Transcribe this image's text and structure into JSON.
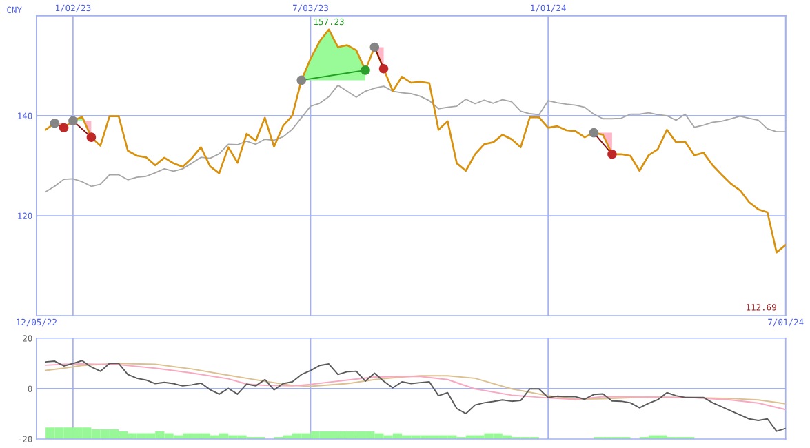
{
  "chart_data": [
    {
      "type": "line",
      "ylabel": "CNY",
      "x": [
        "2022-12-12",
        "2022-12-19",
        "2022-12-26",
        "2023-01-02",
        "2023-01-09",
        "2023-01-16",
        "2023-01-23",
        "2023-01-30",
        "2023-02-06",
        "2023-02-13",
        "2023-02-20",
        "2023-02-27",
        "2023-03-06",
        "2023-03-13",
        "2023-03-20",
        "2023-03-27",
        "2023-04-03",
        "2023-04-10",
        "2023-04-17",
        "2023-04-24",
        "2023-05-01",
        "2023-05-08",
        "2023-05-15",
        "2023-05-22",
        "2023-05-29",
        "2023-06-05",
        "2023-06-12",
        "2023-06-19",
        "2023-06-26",
        "2023-07-03",
        "2023-07-10",
        "2023-07-17",
        "2023-07-24",
        "2023-07-31",
        "2023-08-07",
        "2023-08-14",
        "2023-08-21",
        "2023-08-28",
        "2023-09-04",
        "2023-09-11",
        "2023-09-18",
        "2023-09-25",
        "2023-10-02",
        "2023-10-09",
        "2023-10-16",
        "2023-10-23",
        "2023-10-30",
        "2023-11-06",
        "2023-11-13",
        "2023-11-20",
        "2023-11-27",
        "2023-12-04",
        "2023-12-11",
        "2023-12-18",
        "2023-12-25",
        "2024-01-01",
        "2024-01-08",
        "2024-01-15",
        "2024-01-22",
        "2024-01-29",
        "2024-02-05",
        "2024-02-12",
        "2024-02-19",
        "2024-02-26",
        "2024-03-04",
        "2024-03-11",
        "2024-03-18",
        "2024-03-25",
        "2024-04-01",
        "2024-04-08",
        "2024-04-15",
        "2024-04-22",
        "2024-04-29",
        "2024-05-06",
        "2024-05-13",
        "2024-05-20",
        "2024-05-27",
        "2024-06-03",
        "2024-06-10",
        "2024-06-17",
        "2024-06-24",
        "2024-07-01"
      ],
      "xlim": [
        "2022-12-05",
        "2024-07-01"
      ],
      "xticks": [
        {
          "value": "2022-12-05",
          "label": "12/05/22"
        },
        {
          "value": "2024-07-01",
          "label": "7/01/24"
        }
      ],
      "x2lim": [
        "2022-12-05",
        "2024-07-01"
      ],
      "x2ticks": [
        {
          "value": "2023-01-02",
          "label": "1/02/23"
        },
        {
          "value": "2023-07-03",
          "label": "7/03/23"
        },
        {
          "value": "2024-01-01",
          "label": "1/01/24"
        }
      ],
      "ylim": [
        100,
        160
      ],
      "yticks": [
        120,
        140
      ],
      "grid": true,
      "series": [
        {
          "type": "line",
          "color": "#a6a6a6",
          "values": [
            124.8,
            125.9,
            127.3,
            127.4,
            126.8,
            125.9,
            126.3,
            128.2,
            128.2,
            127.2,
            127.7,
            127.9,
            128.6,
            129.4,
            128.9,
            129.4,
            130.5,
            131.7,
            131.5,
            132.4,
            134.3,
            134.2,
            134.9,
            134.3,
            135.3,
            135.1,
            135.8,
            137.3,
            139.6,
            141.9,
            142.5,
            143.8,
            146.1,
            144.9,
            143.7,
            144.9,
            145.5,
            145.9,
            144.9,
            144.6,
            144.4,
            143.9,
            143.0,
            141.4,
            141.7,
            141.9,
            143.3,
            142.4,
            143.1,
            142.5,
            143.2,
            142.8,
            140.9,
            140.4,
            140.2,
            143.0,
            142.6,
            142.3,
            142.1,
            141.7,
            140.3,
            139.4,
            139.4,
            139.5,
            140.3,
            140.3,
            140.6,
            140.2,
            140.0,
            139.1,
            140.3,
            137.7,
            138.1,
            138.7,
            138.9,
            139.4,
            139.9,
            139.5,
            139.1,
            137.4,
            136.8,
            136.8
          ]
        },
        {
          "color": "#d9900b",
          "values": [
            137.2,
            138.5,
            137.6,
            139.0,
            139.8,
            135.7,
            134.0,
            139.9,
            139.9,
            133.0,
            132.0,
            131.7,
            130.1,
            131.6,
            130.5,
            129.8,
            131.5,
            133.7,
            129.9,
            128.5,
            133.7,
            130.6,
            136.4,
            135.0,
            139.6,
            133.8,
            138.0,
            140.0,
            147.1,
            151.4,
            154.9,
            157.23,
            153.7,
            154.1,
            153.1,
            149.1,
            153.7,
            149.4,
            144.9,
            147.8,
            146.6,
            146.8,
            146.5,
            137.2,
            138.9,
            130.5,
            129.0,
            132.3,
            134.3,
            134.7,
            136.2,
            135.3,
            133.7,
            139.7,
            139.7,
            137.6,
            137.9,
            137.1,
            136.9,
            135.7,
            136.6,
            136.2,
            132.3,
            132.3,
            132.0,
            129.0,
            132.1,
            133.3,
            137.2,
            134.7,
            134.8,
            132.1,
            132.6,
            130.1,
            128.2,
            126.4,
            125.1,
            122.7,
            121.3,
            120.7,
            112.69,
            114.2
          ]
        },
        {
          "type": "line",
          "color": "#8b1010",
          "x": [
            "2022-12-19",
            "2022-12-26"
          ],
          "values": [
            138.5,
            137.6
          ]
        },
        {
          "type": "line",
          "color": "#8b1010",
          "x": [
            "2023-01-02",
            "2023-01-16"
          ],
          "values": [
            139.0,
            135.7
          ]
        },
        {
          "type": "line",
          "color": "#22a022",
          "x": [
            "2023-06-26",
            "2023-08-14"
          ],
          "values": [
            147.1,
            149.1
          ]
        },
        {
          "type": "line",
          "color": "#8b1010",
          "x": [
            "2023-08-21",
            "2023-08-28"
          ],
          "values": [
            153.7,
            149.4
          ]
        },
        {
          "type": "line",
          "color": "#8b1010",
          "x": [
            "2024-02-05",
            "2024-02-19"
          ],
          "values": [
            136.6,
            132.3
          ]
        },
        {
          "type": "scatter",
          "marker": "circle",
          "color": "#858585",
          "x": [
            "2022-12-19",
            "2023-01-02",
            "2023-06-26",
            "2023-08-21",
            "2024-02-05"
          ],
          "values": [
            138.5,
            139.0,
            147.1,
            153.7,
            136.6
          ]
        },
        {
          "type": "scatter",
          "marker": "circle",
          "color": "#c02828",
          "x": [
            "2022-12-26",
            "2023-01-16",
            "2023-08-28",
            "2024-02-19"
          ],
          "values": [
            137.6,
            135.7,
            149.4,
            132.3
          ]
        },
        {
          "type": "scatter",
          "marker": "circle",
          "color": "#2a9d2a",
          "x": [
            "2023-08-14"
          ],
          "values": [
            149.1
          ]
        }
      ],
      "annotations": [
        {
          "text": "157.23",
          "x": "2023-07-17",
          "y": 157.23
        },
        "112.69"
      ]
    },
    {
      "type": "line",
      "x": [
        "2022-12-12",
        "2022-12-19",
        "2022-12-26",
        "2023-01-02",
        "2023-01-09",
        "2023-01-16",
        "2023-01-23",
        "2023-01-30",
        "2023-02-06",
        "2023-02-13",
        "2023-02-20",
        "2023-02-27",
        "2023-03-06",
        "2023-03-13",
        "2023-03-20",
        "2023-03-27",
        "2023-04-03",
        "2023-04-10",
        "2023-04-17",
        "2023-04-24",
        "2023-05-01",
        "2023-05-08",
        "2023-05-15",
        "2023-05-22",
        "2023-05-29",
        "2023-06-05",
        "2023-06-12",
        "2023-06-19",
        "2023-06-26",
        "2023-07-03",
        "2023-07-10",
        "2023-07-17",
        "2023-07-24",
        "2023-07-31",
        "2023-08-07",
        "2023-08-14",
        "2023-08-21",
        "2023-08-28",
        "2023-09-04",
        "2023-09-11",
        "2023-09-18",
        "2023-09-25",
        "2023-10-02",
        "2023-10-09",
        "2023-10-16",
        "2023-10-23",
        "2023-10-30",
        "2023-11-06",
        "2023-11-13",
        "2023-11-20",
        "2023-11-27",
        "2023-12-04",
        "2023-12-11",
        "2023-12-18",
        "2023-12-25",
        "2024-01-01",
        "2024-01-08",
        "2024-01-15",
        "2024-01-22",
        "2024-01-29",
        "2024-02-05",
        "2024-02-12",
        "2024-02-19",
        "2024-02-26",
        "2024-03-04",
        "2024-03-11",
        "2024-03-18",
        "2024-03-25",
        "2024-04-01",
        "2024-04-08",
        "2024-04-15",
        "2024-04-22",
        "2024-04-29",
        "2024-05-06",
        "2024-05-13",
        "2024-05-20",
        "2024-05-27",
        "2024-06-03",
        "2024-06-10",
        "2024-06-17",
        "2024-06-24",
        "2024-07-01"
      ],
      "xlim": [
        "2022-12-05",
        "2024-07-01"
      ],
      "ylim": [
        -20,
        20
      ],
      "yticks": [
        -20,
        0,
        20
      ],
      "ref_lines": [
        {
          "axis": "x",
          "value": "2023-01-02",
          "color": "#a3b1f2"
        },
        {
          "axis": "x",
          "value": "2023-07-03",
          "color": "#a3b1f2"
        },
        {
          "axis": "x",
          "value": "2024-01-01",
          "color": "#a3b1f2"
        },
        {
          "axis": "y",
          "value": 0,
          "color": "#a3b1f2"
        }
      ],
      "series": [
        {
          "type": "bar",
          "color": "#98f898",
          "x": [
            "2022-12-15T12:00",
            "2022-12-22T12:00",
            "2022-12-29T12:00",
            "2023-01-05T12:00",
            "2023-01-12T12:00",
            "2023-01-19T12:00",
            "2023-01-26T12:00",
            "2023-02-02T12:00",
            "2023-02-09T12:00",
            "2023-02-16T12:00",
            "2023-02-23T12:00",
            "2023-03-02T12:00",
            "2023-03-09T12:00",
            "2023-03-16T12:00",
            "2023-03-23T12:00",
            "2023-03-30T12:00",
            "2023-04-06T12:00",
            "2023-04-13T12:00",
            "2023-04-20T12:00",
            "2023-04-27T12:00",
            "2023-05-04T12:00",
            "2023-05-11T12:00",
            "2023-05-18T12:00",
            "2023-05-25T12:00",
            "2023-06-01T12:00",
            "2023-06-08T12:00",
            "2023-06-15T12:00",
            "2023-06-22T12:00",
            "2023-06-29T12:00",
            "2023-07-06T12:00",
            "2023-07-13T12:00",
            "2023-07-20T12:00",
            "2023-07-27T12:00",
            "2023-08-03T12:00",
            "2023-08-10T12:00",
            "2023-08-17T12:00",
            "2023-08-24T12:00",
            "2023-08-31T12:00",
            "2023-09-07T12:00",
            "2023-09-14T12:00",
            "2023-09-21T12:00",
            "2023-09-28T12:00",
            "2023-10-05T12:00",
            "2023-10-12T12:00",
            "2023-10-19T12:00",
            "2023-10-26T12:00",
            "2023-11-02T12:00",
            "2023-11-09T12:00",
            "2023-11-16T12:00",
            "2023-11-23T12:00",
            "2023-11-30T12:00",
            "2023-12-07T12:00",
            "2023-12-14T12:00",
            "2023-12-21T12:00",
            "2023-12-28T12:00",
            "2024-01-04T12:00",
            "2024-01-11T12:00",
            "2024-01-18T12:00",
            "2024-01-25T12:00",
            "2024-02-01T12:00",
            "2024-02-08T12:00",
            "2024-02-15T12:00",
            "2024-02-22T12:00",
            "2024-02-29T12:00",
            "2024-03-07T12:00",
            "2024-03-14T12:00",
            "2024-03-21T12:00",
            "2024-03-28T12:00",
            "2024-04-04T12:00",
            "2024-04-11T12:00",
            "2024-04-18T12:00"
          ],
          "base": [
            -20,
            -20,
            -20,
            -20,
            -20,
            -20,
            -20,
            -20,
            -20,
            -20,
            -20,
            -20,
            -20,
            -20,
            -20,
            -20,
            -20,
            -20,
            -20,
            -20,
            -20,
            -20,
            -20,
            -20,
            null,
            -20,
            -20,
            -20,
            -20,
            -20,
            -20,
            -20,
            -20,
            -20,
            -20,
            -20,
            -20,
            -20,
            -20,
            -20,
            -20,
            -20,
            -20,
            -20,
            -20,
            -20,
            -20,
            -20,
            -20,
            -20,
            -20,
            -20,
            -20,
            -20,
            null,
            null,
            null,
            null,
            null,
            null,
            -20,
            -20,
            -20,
            -20,
            null,
            -20,
            -20,
            -20,
            -20,
            -20,
            -20
          ],
          "values": [
            4.6,
            4.6,
            4.6,
            4.6,
            4.6,
            3.8,
            3.8,
            3.8,
            3.0,
            2.3,
            2.3,
            2.3,
            3.0,
            2.3,
            1.5,
            2.3,
            2.3,
            2.3,
            1.5,
            2.3,
            1.5,
            1.5,
            0.8,
            0.8,
            null,
            0.8,
            1.5,
            2.3,
            2.3,
            3.0,
            3.0,
            3.0,
            3.0,
            3.0,
            3.0,
            3.0,
            2.3,
            1.5,
            2.3,
            1.5,
            1.5,
            1.5,
            1.5,
            1.5,
            1.5,
            0.8,
            1.5,
            1.5,
            2.3,
            2.3,
            1.5,
            0.8,
            0.8,
            0.8,
            null,
            null,
            null,
            null,
            null,
            null,
            0.8,
            0.8,
            0.8,
            0.8,
            null,
            0.8,
            1.5,
            1.5,
            0.8,
            0.8,
            0.8
          ]
        },
        {
          "type": "line",
          "color": "#dcc090",
          "x": [
            "2022-12-12",
            "2022-12-26",
            "2023-01-09",
            "2023-02-06",
            "2023-03-06",
            "2023-04-03",
            "2023-05-01",
            "2023-05-15",
            "2023-05-29",
            "2023-06-19",
            "2023-07-03",
            "2023-07-31",
            "2023-08-21",
            "2023-09-11",
            "2023-09-25",
            "2023-10-16",
            "2023-11-06",
            "2023-12-04",
            "2024-01-01",
            "2024-01-22",
            "2024-02-12",
            "2024-03-18",
            "2024-04-22",
            "2024-05-20",
            "2024-06-10",
            "2024-07-01"
          ],
          "values": [
            7.2,
            8.1,
            9.2,
            10.0,
            9.7,
            7.8,
            5.3,
            4.1,
            2.9,
            1.3,
            0.9,
            2.0,
            3.6,
            4.6,
            5.1,
            5.1,
            4.1,
            -0.1,
            -2.8,
            -4.2,
            -4.0,
            -3.3,
            -3.6,
            -3.9,
            -4.5,
            -6.0
          ]
        },
        {
          "type": "line",
          "color": "#f8a8c0",
          "x": [
            "2022-12-12",
            "2022-12-26",
            "2023-01-09",
            "2023-02-06",
            "2023-03-06",
            "2023-04-03",
            "2023-05-01",
            "2023-05-15",
            "2023-05-29",
            "2023-06-19",
            "2023-07-03",
            "2023-07-31",
            "2023-08-21",
            "2023-09-11",
            "2023-09-25",
            "2023-10-16",
            "2023-11-06",
            "2023-12-04",
            "2024-01-01",
            "2024-01-22",
            "2024-02-12",
            "2024-03-18",
            "2024-04-22",
            "2024-05-20",
            "2024-06-10",
            "2024-07-01"
          ],
          "values": [
            9.3,
            9.7,
            9.8,
            9.5,
            8.1,
            6.2,
            3.9,
            1.8,
            1.3,
            1.1,
            1.7,
            3.4,
            4.6,
            4.8,
            4.8,
            3.6,
            -0.1,
            -2.6,
            -3.7,
            -4.3,
            -3.2,
            -3.4,
            -3.6,
            -4.5,
            -5.7,
            -8.3
          ]
        },
        {
          "color": "#5a5a5a",
          "values": [
            10.6,
            10.9,
            9.0,
            10.0,
            11.1,
            8.6,
            6.9,
            10.0,
            10.0,
            5.6,
            4.1,
            3.4,
            2.0,
            2.5,
            2.0,
            1.1,
            1.5,
            2.2,
            -0.4,
            -2.2,
            0.1,
            -2.2,
            1.8,
            1.1,
            3.6,
            -0.5,
            2.0,
            2.7,
            5.6,
            7.2,
            9.2,
            9.8,
            5.6,
            6.7,
            6.9,
            3.0,
            6.1,
            3.0,
            0.3,
            2.7,
            2.0,
            2.4,
            2.7,
            -2.8,
            -1.6,
            -7.9,
            -9.9,
            -6.5,
            -5.6,
            -5.1,
            -4.5,
            -5.0,
            -4.7,
            -0.1,
            -0.1,
            -3.5,
            -3.0,
            -3.2,
            -3.2,
            -4.2,
            -2.3,
            -2.1,
            -4.9,
            -5.0,
            -5.6,
            -7.6,
            -5.8,
            -4.4,
            -1.6,
            -2.8,
            -3.5,
            -3.5,
            -3.5,
            -5.6,
            -7.2,
            -8.8,
            -10.4,
            -12.0,
            -12.6,
            -12.0,
            -16.9,
            -15.8
          ]
        }
      ]
    }
  ]
}
